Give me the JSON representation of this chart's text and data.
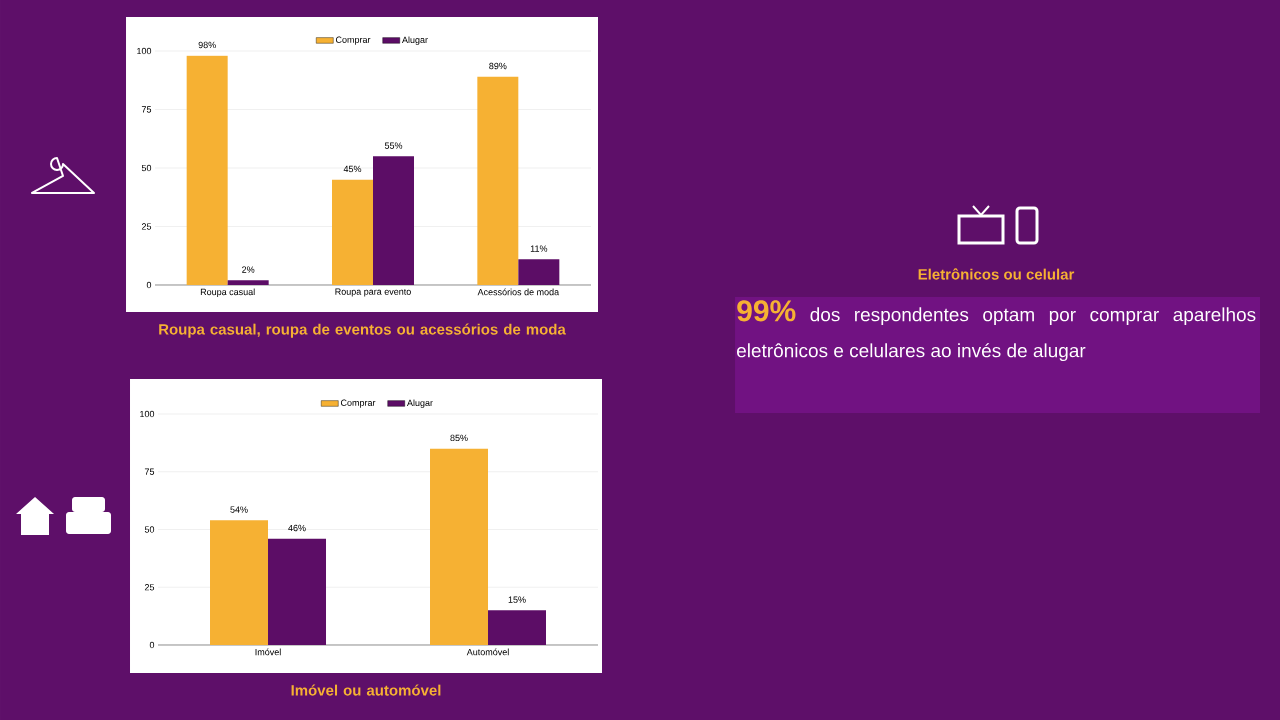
{
  "chart_data": [
    {
      "type": "bar",
      "title": "Roupa casual, roupa de eventos ou acessórios de moda",
      "categories": [
        "Roupa casual",
        "Roupa para evento",
        "Acessórios de moda"
      ],
      "series": [
        {
          "name": "Comprar",
          "color": "#f6b133",
          "values": [
            98,
            45,
            89
          ],
          "value_labels": [
            "98%",
            "45%",
            "89%"
          ]
        },
        {
          "name": "Alugar",
          "color": "#5c0d66",
          "values": [
            2,
            55,
            11
          ],
          "value_labels": [
            "2%",
            "55%",
            "11%"
          ]
        }
      ],
      "ylim": [
        0,
        100
      ],
      "yticks": [
        0,
        25,
        50,
        75,
        100
      ],
      "grid": "y",
      "legend": "top"
    },
    {
      "type": "bar",
      "title": "Imóvel ou automóvel",
      "categories": [
        "Imóvel",
        "Automóvel"
      ],
      "series": [
        {
          "name": "Comprar",
          "color": "#f6b133",
          "values": [
            54,
            85
          ],
          "value_labels": [
            "54%",
            "85%"
          ]
        },
        {
          "name": "Alugar",
          "color": "#5c0d66",
          "values": [
            46,
            15
          ],
          "value_labels": [
            "46%",
            "15%"
          ]
        }
      ],
      "ylim": [
        0,
        100
      ],
      "yticks": [
        0,
        25,
        50,
        75,
        100
      ],
      "grid": "y",
      "legend": "top"
    },
    {
      "type": "other",
      "title": "Eletrônicos ou celular",
      "annotations": [
        "**99%** dos respondentes optam por comprar aparelhos eletrônicos e celulares ao invés de alugar"
      ]
    }
  ]
}
